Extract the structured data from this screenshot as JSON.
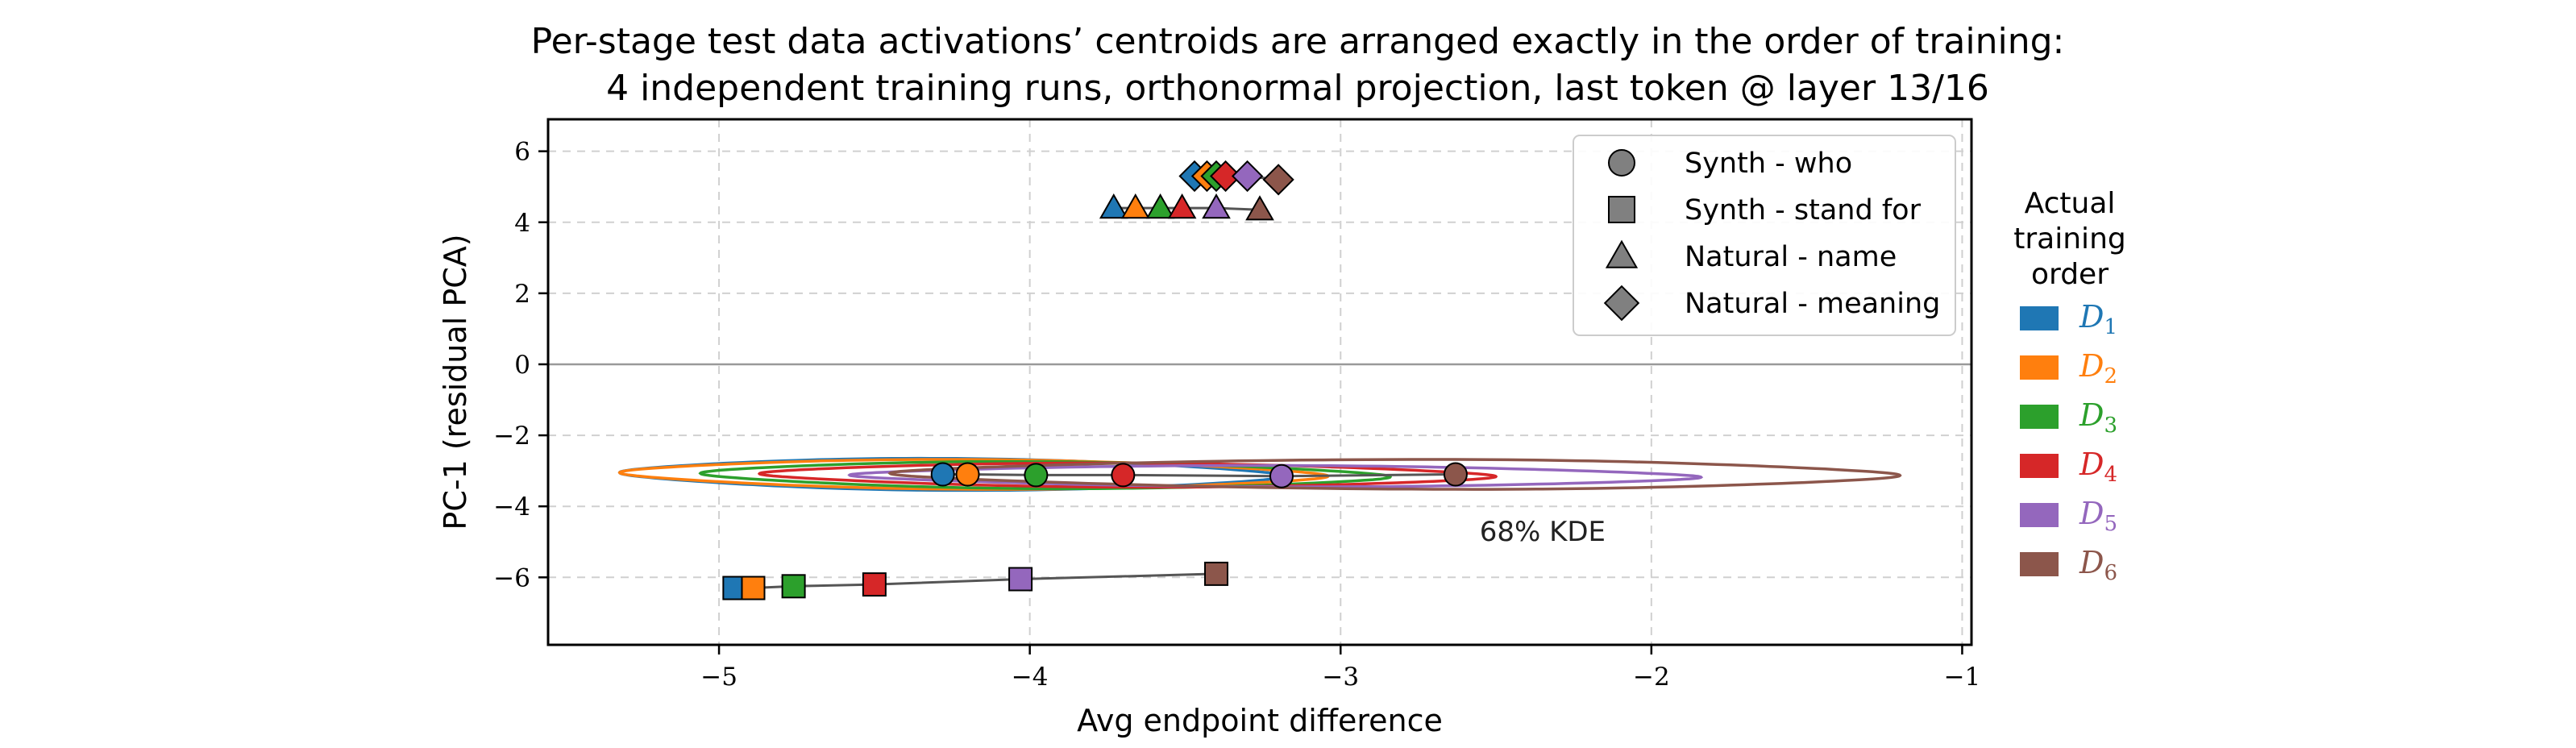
{
  "chart_data": {
    "type": "scatter",
    "title_lines": [
      "Per-stage test data activations’ centroids are arranged exactly in the order of training:",
      "4 independent training runs, orthonormal projection, last token @ layer 13/16"
    ],
    "xlabel": "Avg endpoint difference",
    "ylabel": "PC-1 (residual PCA)",
    "xlim": [
      -5.55,
      -0.97
    ],
    "ylim": [
      -7.9,
      6.9
    ],
    "xticks": [
      -5,
      -4,
      -3,
      -2,
      -1
    ],
    "xtick_labels": [
      "−5",
      "−4",
      "−3",
      "−2",
      "−1"
    ],
    "yticks": [
      -6,
      -4,
      -2,
      0,
      2,
      4,
      6
    ],
    "ytick_labels": [
      "−6",
      "−4",
      "−2",
      "0",
      "2",
      "4",
      "6"
    ],
    "grid": true,
    "zero_line": 0,
    "stages": [
      "D1",
      "D2",
      "D3",
      "D4",
      "D5",
      "D6"
    ],
    "stage_colors": [
      "#1f77b4",
      "#ff7f0e",
      "#2ca02c",
      "#d62728",
      "#9467bd",
      "#8c564b"
    ],
    "series": [
      {
        "name": "Synth - who",
        "marker": "circle",
        "x": [
          -4.28,
          -4.2,
          -3.98,
          -3.7,
          -3.19,
          -2.63
        ],
        "y": [
          -3.1,
          -3.1,
          -3.12,
          -3.12,
          -3.15,
          -3.1
        ]
      },
      {
        "name": "Synth - stand for",
        "marker": "square",
        "x": [
          -4.95,
          -4.89,
          -4.76,
          -4.5,
          -4.03,
          -3.4
        ],
        "y": [
          -6.3,
          -6.3,
          -6.25,
          -6.2,
          -6.05,
          -5.9
        ]
      },
      {
        "name": "Natural - name",
        "marker": "triangle",
        "x": [
          -3.73,
          -3.66,
          -3.58,
          -3.51,
          -3.4,
          -3.26
        ],
        "y": [
          4.4,
          4.4,
          4.4,
          4.4,
          4.4,
          4.35
        ]
      },
      {
        "name": "Natural - meaning",
        "marker": "diamond",
        "x": [
          -3.47,
          -3.43,
          -3.4,
          -3.37,
          -3.3,
          -3.2
        ],
        "y": [
          5.3,
          5.3,
          5.3,
          5.3,
          5.3,
          5.2
        ]
      }
    ],
    "kde_contours": [
      {
        "stage": "D1",
        "cx": -4.28,
        "cy": -3.1,
        "rx_left": 1.04,
        "rx_right": 1.1,
        "ry": 0.45,
        "tilt": 0.05
      },
      {
        "stage": "D2",
        "cx": -4.2,
        "cy": -3.1,
        "rx_left": 1.12,
        "rx_right": 1.16,
        "ry": 0.42,
        "tilt": 0.05
      },
      {
        "stage": "D3",
        "cx": -3.98,
        "cy": -3.12,
        "rx_left": 1.08,
        "rx_right": 1.14,
        "ry": 0.38,
        "tilt": 0.05
      },
      {
        "stage": "D4",
        "cx": -3.7,
        "cy": -3.12,
        "rx_left": 1.17,
        "rx_right": 1.2,
        "ry": 0.34,
        "tilt": 0.04
      },
      {
        "stage": "D5",
        "cx": -3.19,
        "cy": -3.15,
        "rx_left": 1.39,
        "rx_right": 1.35,
        "ry": 0.3,
        "tilt": 0.03
      },
      {
        "stage": "D6",
        "cx": -2.63,
        "cy": -3.1,
        "rx_left": 1.82,
        "rx_right": 1.43,
        "ry": 0.42,
        "tilt": 0.03
      }
    ],
    "annotation": {
      "text": "68% KDE",
      "x": -2.35,
      "y": -4.7
    },
    "legend": {
      "position": "upper-right",
      "entries": [
        {
          "label": "Synth - who",
          "marker": "circle"
        },
        {
          "label": "Synth - stand for",
          "marker": "square"
        },
        {
          "label": "Natural - name",
          "marker": "triangle"
        },
        {
          "label": "Natural - meaning",
          "marker": "diamond"
        }
      ]
    },
    "order_legend": {
      "title_lines": [
        "Actual",
        "training",
        "order"
      ],
      "entries": [
        {
          "letter": "D",
          "sub": "1",
          "color": "#1f77b4"
        },
        {
          "letter": "D",
          "sub": "2",
          "color": "#ff7f0e"
        },
        {
          "letter": "D",
          "sub": "3",
          "color": "#2ca02c"
        },
        {
          "letter": "D",
          "sub": "4",
          "color": "#d62728"
        },
        {
          "letter": "D",
          "sub": "5",
          "color": "#9467bd"
        },
        {
          "letter": "D",
          "sub": "6",
          "color": "#8c564b"
        }
      ]
    },
    "marker_fill_legend": "#808080",
    "connector_color": "#555555",
    "zero_line_color": "#999999"
  }
}
